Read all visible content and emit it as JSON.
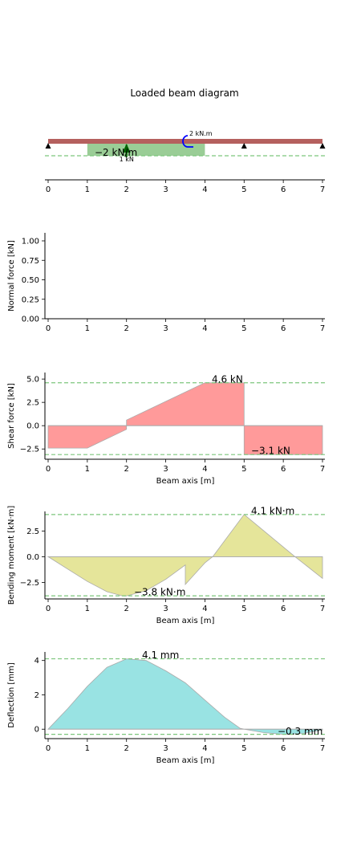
{
  "title": "Loaded beam diagram",
  "colors": {
    "beam": "#b5605e",
    "dist_load": "#9acd96",
    "point_load": "#006400",
    "moment_load": "#0000ff",
    "support": "#000000",
    "guide": "#7cc67c",
    "shear_fill": "#ff9a9a",
    "moment_fill": "#e5e59a",
    "deflection_fill": "#99e3e3",
    "outline": "#aaaaaa"
  },
  "chart_data": [
    {
      "type": "area",
      "name": "beam-diagram",
      "title": "Loaded beam diagram",
      "xlim": [
        0,
        7
      ],
      "xticks": [
        0,
        1,
        2,
        3,
        4,
        5,
        6,
        7
      ],
      "supports": [
        0,
        5,
        7
      ],
      "distributed_load": {
        "x_start": 1,
        "x_end": 4,
        "label": "−2 kN/m"
      },
      "point_load": {
        "x": 2,
        "label": "1 kN"
      },
      "moment_load": {
        "x": 3.5,
        "label": "2 kN.m"
      }
    },
    {
      "type": "area",
      "name": "normal-force",
      "ylabel": "Normal force [kN]",
      "xlim": [
        0,
        7
      ],
      "ylim": [
        0,
        1
      ],
      "xticks": [
        0,
        1,
        2,
        3,
        4,
        5,
        6,
        7
      ],
      "yticks": [
        "1.00",
        "0.75",
        "0.50",
        "0.25",
        "0.00"
      ],
      "ytick_values": [
        1,
        0.75,
        0.5,
        0.25,
        0
      ],
      "x": [],
      "y": []
    },
    {
      "type": "area",
      "name": "shear-force",
      "ylabel": "Shear force [kN]",
      "xlabel": "Beam axis [m]",
      "xlim": [
        0,
        7
      ],
      "ylim": [
        -3.6,
        5.7
      ],
      "xticks": [
        0,
        1,
        2,
        3,
        4,
        5,
        6,
        7
      ],
      "yticks": [
        "5.0",
        "2.5",
        "0.0",
        "−2.5"
      ],
      "ytick_values": [
        5,
        2.5,
        0,
        -2.5
      ],
      "x": [
        0,
        0,
        1,
        2,
        2,
        4,
        5,
        5,
        7,
        7
      ],
      "y": [
        0,
        -2.4,
        -2.4,
        -0.4,
        0.6,
        4.6,
        4.6,
        -3.1,
        -3.1,
        0
      ],
      "max_label": "4.6 kN",
      "min_label": "−3.1 kN",
      "max_value": 4.6,
      "min_value": -3.1
    },
    {
      "type": "area",
      "name": "bending-moment",
      "ylabel": "Bending moment [kN·m]",
      "xlabel": "Beam axis [m]",
      "xlim": [
        0,
        7
      ],
      "ylim": [
        -4.1,
        4.4
      ],
      "xticks": [
        0,
        1,
        2,
        3,
        4,
        5,
        6,
        7
      ],
      "yticks": [
        "2.5",
        "0.0",
        "−2.5"
      ],
      "ytick_values": [
        2.5,
        0,
        -2.5
      ],
      "x": [
        0,
        0.5,
        1,
        1.5,
        1.9,
        2,
        2.5,
        3,
        3.5,
        3.5,
        4,
        4.2,
        5,
        6.3,
        7,
        7
      ],
      "y": [
        0,
        -1.2,
        -2.4,
        -3.4,
        -3.8,
        -3.8,
        -3.3,
        -2.2,
        -0.8,
        -2.7,
        -0.6,
        0,
        4.1,
        0,
        -2.1,
        0
      ],
      "max_label": "4.1 kN·m",
      "min_label": "−3.8 kN·m",
      "max_value": 4.1,
      "min_value": -3.8
    },
    {
      "type": "area",
      "name": "deflection",
      "ylabel": "Deflection [mm]",
      "xlabel": "Beam axis [m]",
      "xlim": [
        0,
        7
      ],
      "ylim": [
        -0.55,
        4.5
      ],
      "xticks": [
        0,
        1,
        2,
        3,
        4,
        5,
        6,
        7
      ],
      "yticks": [
        "4",
        "2",
        "0"
      ],
      "ytick_values": [
        4,
        2,
        0
      ],
      "x": [
        0,
        0.5,
        1,
        1.5,
        2,
        2.5,
        3,
        3.5,
        4,
        4.5,
        4.9,
        5,
        5.5,
        6,
        6.5,
        7,
        7
      ],
      "y": [
        0,
        1.2,
        2.5,
        3.6,
        4.1,
        4.0,
        3.4,
        2.7,
        1.7,
        0.7,
        0.05,
        0,
        -0.2,
        -0.3,
        -0.25,
        -0.05,
        0
      ],
      "max_label": "4.1 mm",
      "min_label": "−0.3 mm",
      "max_value": 4.1,
      "min_value": -0.3
    }
  ]
}
